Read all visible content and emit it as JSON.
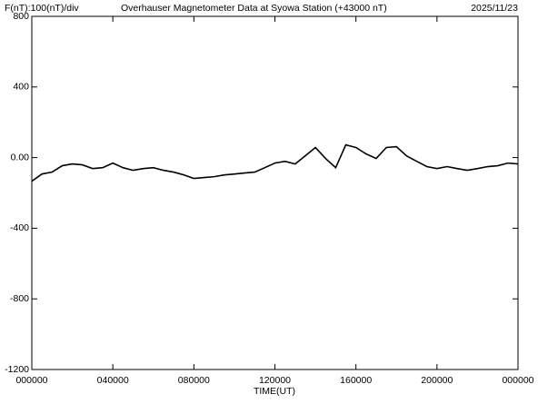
{
  "chart_data": {
    "type": "line",
    "header_left": "F(nT):100(nT)/div",
    "title": "Overhauser Magnetometer Data at Syowa Station (+43000 nT)",
    "date": "2025/11/23",
    "xlabel": "TIME(UT)",
    "x": [
      0,
      0.5,
      1,
      1.5,
      2,
      2.5,
      3,
      3.5,
      4,
      4.5,
      5,
      5.5,
      6,
      6.5,
      7,
      7.5,
      8,
      8.5,
      9,
      9.5,
      10,
      10.5,
      11,
      11.5,
      12,
      12.5,
      13,
      13.5,
      14,
      14.5,
      15,
      15.5,
      16,
      16.5,
      17,
      17.5,
      18,
      18.5,
      19,
      19.5,
      20,
      20.5,
      21,
      21.5,
      22,
      22.5,
      23,
      23.5,
      24
    ],
    "series": [
      {
        "color": "#000000",
        "values": [
          -134,
          -93,
          -82,
          -46,
          -36,
          -41,
          -62,
          -57,
          -31,
          -57,
          -72,
          -62,
          -57,
          -72,
          -82,
          -98,
          -118,
          -113,
          -108,
          -98,
          -93,
          -87,
          -82,
          -57,
          -31,
          -21,
          -36,
          10,
          57,
          -5,
          -57,
          72,
          57,
          21,
          -5,
          57,
          62,
          10,
          -21,
          -51,
          -62,
          -51,
          -62,
          -72,
          -62,
          -51,
          -46,
          -31,
          -36
        ]
      }
    ],
    "xlim": [
      0,
      24
    ],
    "xticks": [
      {
        "value": 0,
        "label": "000000"
      },
      {
        "value": 4,
        "label": "040000"
      },
      {
        "value": 8,
        "label": "080000"
      },
      {
        "value": 12,
        "label": "120000"
      },
      {
        "value": 16,
        "label": "160000"
      },
      {
        "value": 20,
        "label": "200000"
      },
      {
        "value": 24,
        "label": "000000"
      }
    ],
    "ylim": [
      -1200,
      800
    ],
    "yticks": [
      800,
      400,
      {
        "value": 0,
        "label": "0.00"
      },
      -400,
      -800,
      -1200
    ]
  }
}
